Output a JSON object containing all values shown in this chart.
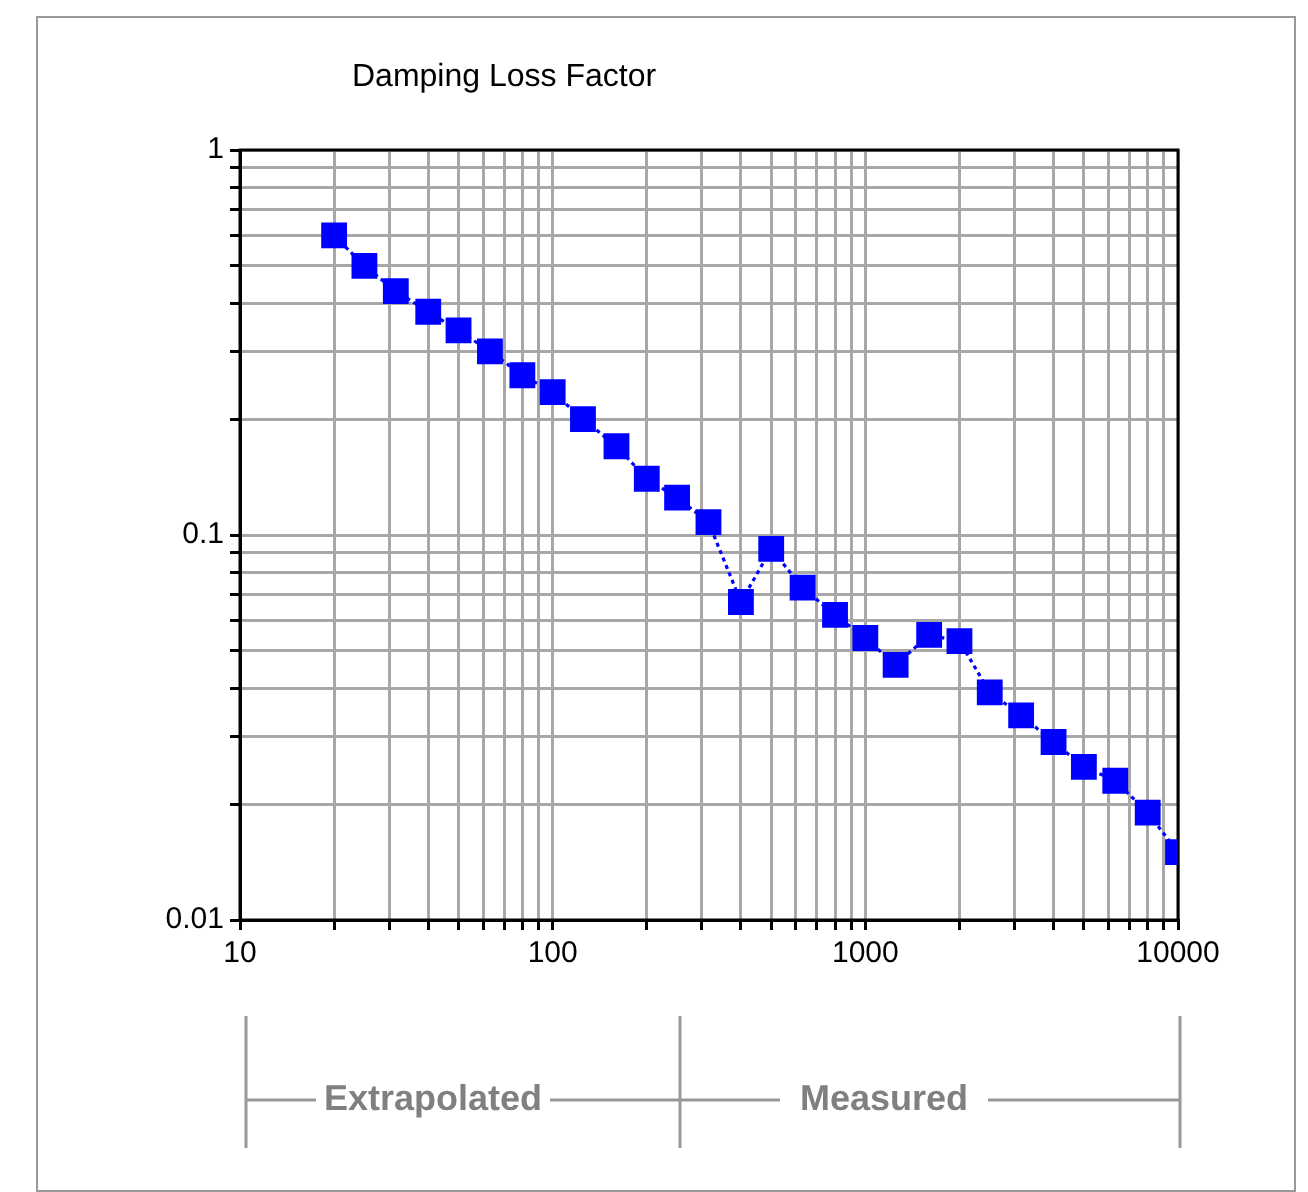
{
  "chart_data": {
    "type": "line",
    "title": "Damping Loss Factor",
    "x": [
      20,
      25,
      31.5,
      40,
      50,
      63,
      80,
      100,
      125,
      160,
      200,
      250,
      315,
      400,
      500,
      630,
      800,
      1000,
      1250,
      1600,
      2000,
      2500,
      3150,
      4000,
      5000,
      6300,
      8000,
      10000
    ],
    "series": [
      {
        "color": "#0000ff",
        "values": [
          0.6,
          0.5,
          0.43,
          0.38,
          0.34,
          0.3,
          0.26,
          0.235,
          0.2,
          0.17,
          0.14,
          0.125,
          0.108,
          0.067,
          0.092,
          0.073,
          0.062,
          0.054,
          0.046,
          0.055,
          0.053,
          0.039,
          0.034,
          0.029,
          0.025,
          0.023,
          0.019,
          0.015
        ]
      }
    ],
    "log": "xy",
    "xlim": [
      10,
      10000
    ],
    "ylim": [
      0.01,
      1
    ],
    "xticks": [
      10,
      {
        "value": 20,
        "label": null
      },
      {
        "value": 30,
        "label": null
      },
      {
        "value": 40,
        "label": null
      },
      {
        "value": 50,
        "label": null
      },
      {
        "value": 60,
        "label": null
      },
      {
        "value": 70,
        "label": null
      },
      {
        "value": 80,
        "label": null
      },
      {
        "value": 90,
        "label": null
      },
      100,
      {
        "value": 200,
        "label": null
      },
      {
        "value": 300,
        "label": null
      },
      {
        "value": 400,
        "label": null
      },
      {
        "value": 500,
        "label": null
      },
      {
        "value": 600,
        "label": null
      },
      {
        "value": 700,
        "label": null
      },
      {
        "value": 800,
        "label": null
      },
      {
        "value": 900,
        "label": null
      },
      1000,
      {
        "value": 2000,
        "label": null
      },
      {
        "value": 3000,
        "label": null
      },
      {
        "value": 4000,
        "label": null
      },
      {
        "value": 5000,
        "label": null
      },
      {
        "value": 6000,
        "label": null
      },
      {
        "value": 7000,
        "label": null
      },
      {
        "value": 8000,
        "label": null
      },
      {
        "value": 9000,
        "label": null
      },
      10000
    ],
    "yticks": [
      0.01,
      {
        "value": 0.02,
        "label": null
      },
      {
        "value": 0.03,
        "label": null
      },
      {
        "value": 0.04,
        "label": null
      },
      {
        "value": 0.05,
        "label": null
      },
      {
        "value": 0.06,
        "label": null
      },
      {
        "value": 0.07,
        "label": null
      },
      {
        "value": 0.08,
        "label": null
      },
      {
        "value": 0.09,
        "label": null
      },
      0.1,
      {
        "value": 0.2,
        "label": null
      },
      {
        "value": 0.3,
        "label": null
      },
      {
        "value": 0.4,
        "label": null
      },
      {
        "value": 0.5,
        "label": null
      },
      {
        "value": 0.6,
        "label": null
      },
      {
        "value": 0.7,
        "label": null
      },
      {
        "value": 0.8,
        "label": null
      },
      {
        "value": 0.9,
        "label": null
      },
      1
    ],
    "grid": true,
    "marker": "square",
    "line_style": "dotted",
    "legend": false,
    "annotations": [
      "Extrapolated",
      "Measured"
    ]
  }
}
